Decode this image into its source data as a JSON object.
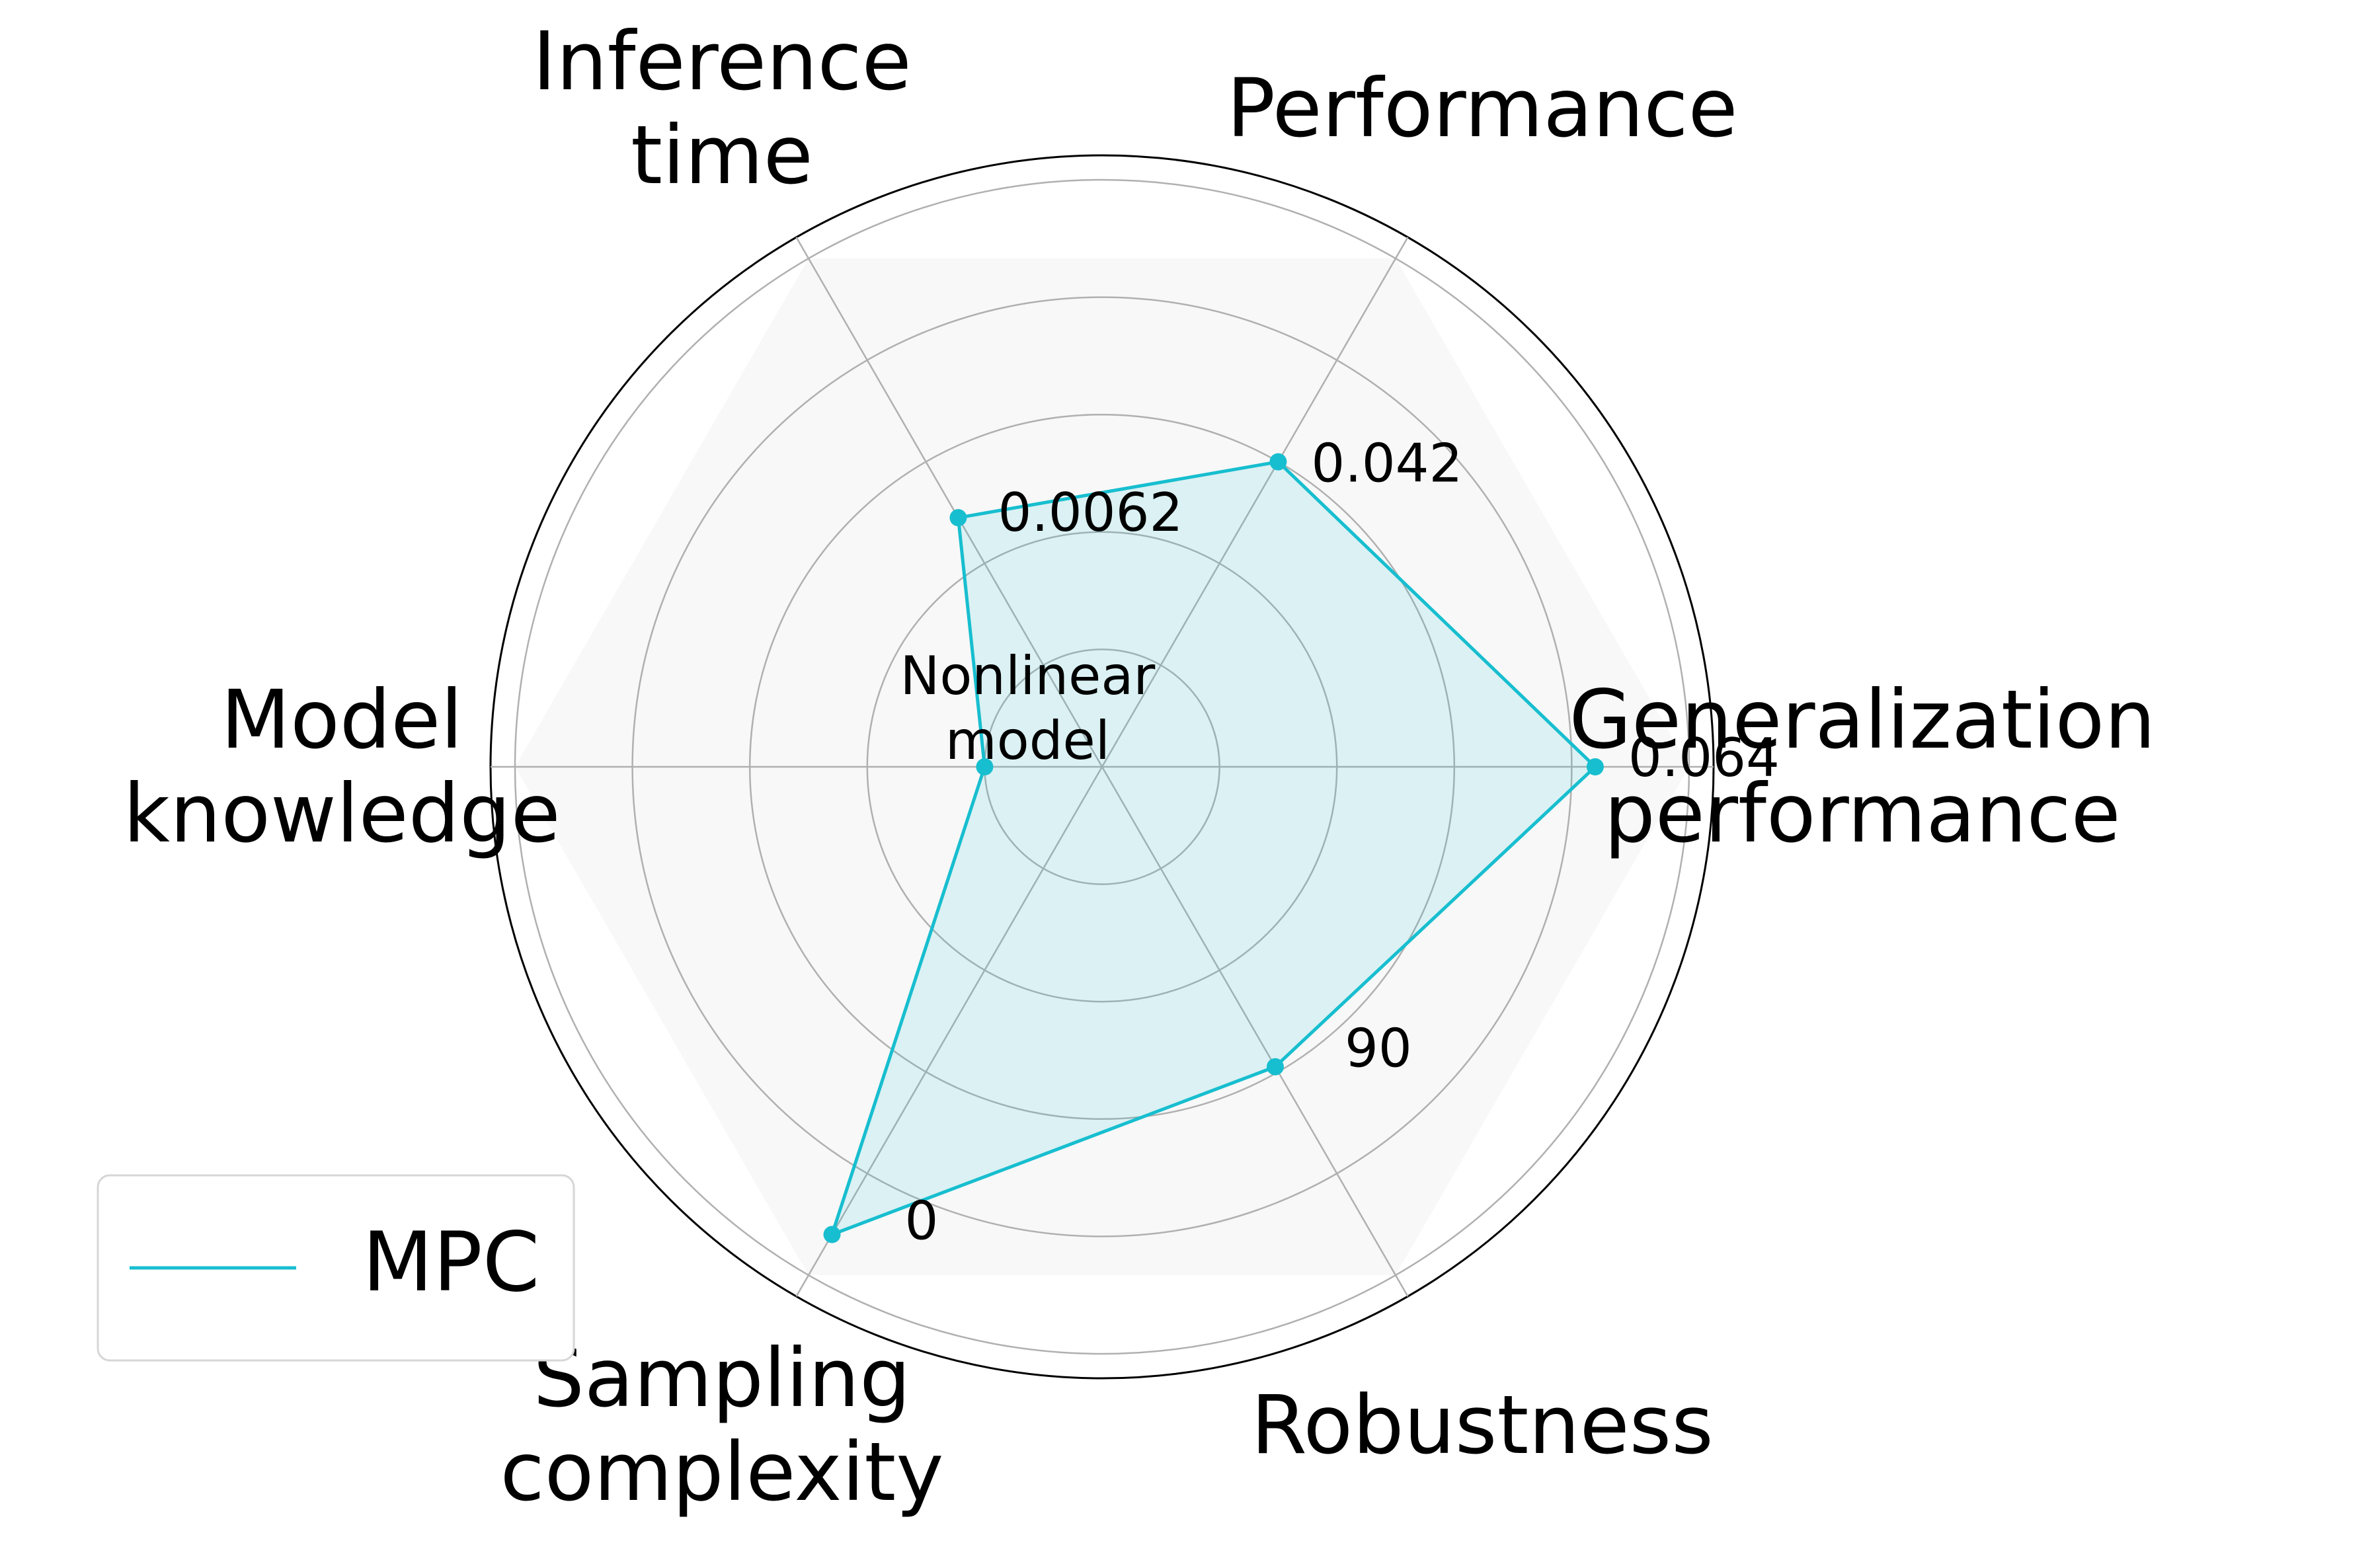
{
  "chart_data": {
    "type": "radar",
    "axes": [
      {
        "label_lines": [
          "Generalization",
          "performance"
        ]
      },
      {
        "label_lines": [
          "Performance"
        ]
      },
      {
        "label_lines": [
          "Inference",
          "time"
        ]
      },
      {
        "label_lines": [
          "Model",
          "knowledge"
        ]
      },
      {
        "label_lines": [
          "Sampling",
          "complexity"
        ]
      },
      {
        "label_lines": [
          "Robustness"
        ]
      }
    ],
    "series": [
      {
        "name": "MPC",
        "color": "#17becf",
        "values": [
          0.84,
          0.6,
          0.49,
          0.2,
          0.92,
          0.59
        ],
        "point_labels": [
          "0.064",
          "0.042",
          "0.0062",
          "Nonlinear model",
          "0",
          "90"
        ]
      }
    ],
    "value_range": [
      0,
      1
    ],
    "grid_rings": [
      0.2,
      0.4,
      0.6,
      0.8,
      1.0
    ],
    "grid": true,
    "legend": {
      "placement": "bottom-left"
    }
  }
}
